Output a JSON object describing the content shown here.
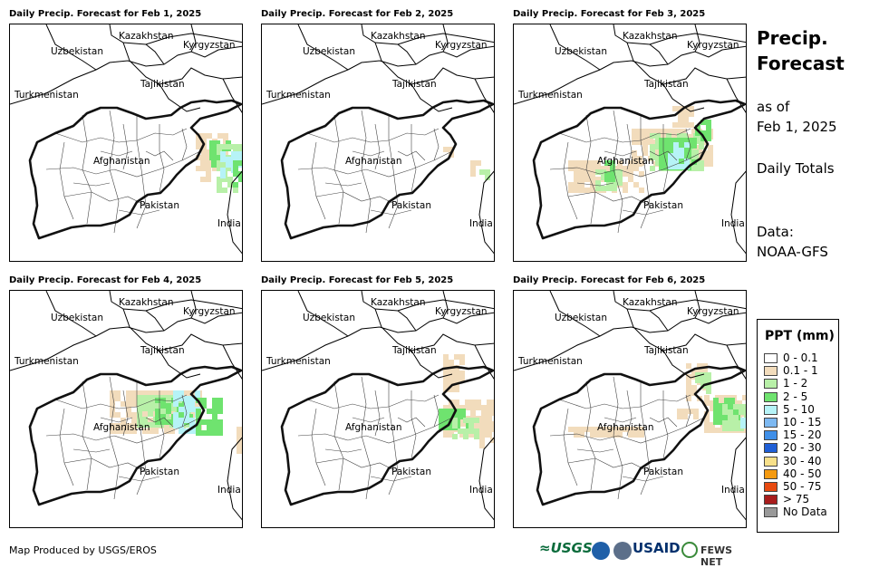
{
  "panels": [
    {
      "title": "Daily Precip. Forecast for Feb 1, 2025"
    },
    {
      "title": "Daily Precip. Forecast for Feb 2, 2025"
    },
    {
      "title": "Daily Precip. Forecast for Feb 3, 2025"
    },
    {
      "title": "Daily Precip. Forecast for Feb 4, 2025"
    },
    {
      "title": "Daily Precip. Forecast for Feb 5, 2025"
    },
    {
      "title": "Daily Precip. Forecast for Feb 6, 2025"
    }
  ],
  "map_labels": {
    "kazakhstan": "Kazakhstan",
    "kyrgyzstan": "Kyrgyzstan",
    "uzbekistan": "Uzbekistan",
    "tajikistan": "Tajikistan",
    "turkmenistan": "Turkmenistan",
    "afghanistan": "Afghanistan",
    "pakistan": "Pakistan",
    "india": "India"
  },
  "side": {
    "title_line1": "Precip.",
    "title_line2": "Forecast",
    "as_of_line1": "as of",
    "as_of_line2": "Feb 1, 2025",
    "totals": "Daily Totals",
    "data_line1": "Data:",
    "data_line2": "NOAA-GFS"
  },
  "legend": {
    "title": "PPT (mm)",
    "items": [
      {
        "label": "0 - 0.1",
        "color": "#ffffff"
      },
      {
        "label": "0.1 - 1",
        "color": "#f2dcbc"
      },
      {
        "label": "1 - 2",
        "color": "#b8f0a8"
      },
      {
        "label": "2 - 5",
        "color": "#6fe36f"
      },
      {
        "label": "5 - 10",
        "color": "#b6f3f7"
      },
      {
        "label": "10 - 15",
        "color": "#7db9f2"
      },
      {
        "label": "15 - 20",
        "color": "#3f8fe8"
      },
      {
        "label": "20 - 30",
        "color": "#1f5fd6"
      },
      {
        "label": "30 - 40",
        "color": "#f7e08a"
      },
      {
        "label": "40 - 50",
        "color": "#f59a10"
      },
      {
        "label": "50 - 75",
        "color": "#e84a10"
      },
      {
        "label": "> 75",
        "color": "#a81c1c"
      },
      {
        "label": "No Data",
        "color": "#999999"
      }
    ]
  },
  "footer": {
    "credit": "Map Produced by USGS/EROS",
    "usgs": "≈USGS",
    "usaid": "USAID",
    "fews": "FEWS NET"
  }
}
